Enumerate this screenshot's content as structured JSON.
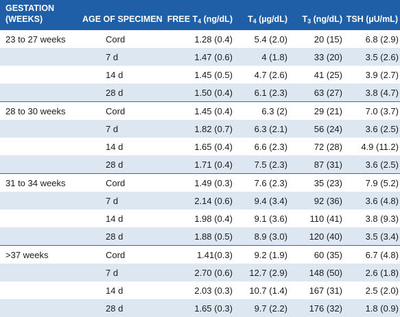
{
  "header": {
    "gestation_line1": "GESTATION",
    "gestation_line2": "(WEEKS)",
    "age": "AGE OF SPECIMEN",
    "free_t4_pre": "FREE T",
    "free_t4_sub": "4",
    "free_t4_post": " (ng/dL)",
    "t4_pre": "T",
    "t4_sub": "4",
    "t4_post": " (µg/dL)",
    "t3_pre": "T",
    "t3_sub": "3",
    "t3_post": " (ng/dL)",
    "tsh": "TSH (µU/mL)"
  },
  "groups": [
    {
      "gestation": "23 to 27 weeks",
      "rows": [
        {
          "age": "Cord",
          "free_t4": "1.28 (0.4)",
          "t4": "5.4 (2.0)",
          "t3": "20 (15)",
          "tsh": "6.8 (2.9)"
        },
        {
          "age": "7 d",
          "free_t4": "1.47 (0.6)",
          "t4": "4 (1.8)",
          "t3": "33 (20)",
          "tsh": "3.5 (2.6)"
        },
        {
          "age": "14 d",
          "free_t4": "1.45 (0.5)",
          "t4": "4.7 (2.6)",
          "t3": "41 (25)",
          "tsh": "3.9 (2.7)"
        },
        {
          "age": "28 d",
          "free_t4": "1.50 (0.4)",
          "t4": "6.1 (2.3)",
          "t3": "63 (27)",
          "tsh": "3.8 (4.7)"
        }
      ]
    },
    {
      "gestation": "28 to 30 weeks",
      "rows": [
        {
          "age": "Cord",
          "free_t4": "1.45 (0.4)",
          "t4": "6.3 (2)",
          "t3": "29 (21)",
          "tsh": "7.0 (3.7)"
        },
        {
          "age": "7 d",
          "free_t4": "1.82 (0.7)",
          "t4": "6.3 (2.1)",
          "t3": "56 (24)",
          "tsh": "3.6 (2.5)"
        },
        {
          "age": "14 d",
          "free_t4": "1.65 (0.4)",
          "t4": "6.6 (2.3)",
          "t3": "72 (28)",
          "tsh": "4.9 (11.2)"
        },
        {
          "age": "28 d",
          "free_t4": "1.71 (0.4)",
          "t4": "7.5 (2.3)",
          "t3": "87 (31)",
          "tsh": "3.6 (2.5)"
        }
      ]
    },
    {
      "gestation": "31 to 34 weeks",
      "rows": [
        {
          "age": "Cord",
          "free_t4": "1.49 (0.3)",
          "t4": "7.6 (2.3)",
          "t3": "35 (23)",
          "tsh": "7.9 (5.2)"
        },
        {
          "age": "7 d",
          "free_t4": "2.14 (0.6)",
          "t4": "9.4 (3.4)",
          "t3": "92 (36)",
          "tsh": "3.6 (4.8)"
        },
        {
          "age": "14 d",
          "free_t4": "1.98 (0.4)",
          "t4": "9.1 (3.6)",
          "t3": "110 (41)",
          "tsh": "3.8 (9.3)"
        },
        {
          "age": "28 d",
          "free_t4": "1.88 (0.5)",
          "t4": "8.9 (3.0)",
          "t3": "120 (40)",
          "tsh": "3.5 (3.4)"
        }
      ]
    },
    {
      "gestation": ">37 weeks",
      "rows": [
        {
          "age": "Cord",
          "free_t4": "1.41(0.3)",
          "t4": "9.2 (1.9)",
          "t3": "60 (35)",
          "tsh": "6.7 (4.8)"
        },
        {
          "age": "7 d",
          "free_t4": "2.70 (0.6)",
          "t4": "12.7 (2.9)",
          "t3": "148 (50)",
          "tsh": "2.6 (1.8)"
        },
        {
          "age": "14 d",
          "free_t4": "2.03 (0.3)",
          "t4": "10.7 (1.4)",
          "t3": "167 (31)",
          "tsh": "2.5 (2.0)"
        },
        {
          "age": "28 d",
          "free_t4": "1.65 (0.3)",
          "t4": "9.7 (2.2)",
          "t3": "176 (32)",
          "tsh": "1.8 (0.9)"
        }
      ]
    }
  ]
}
